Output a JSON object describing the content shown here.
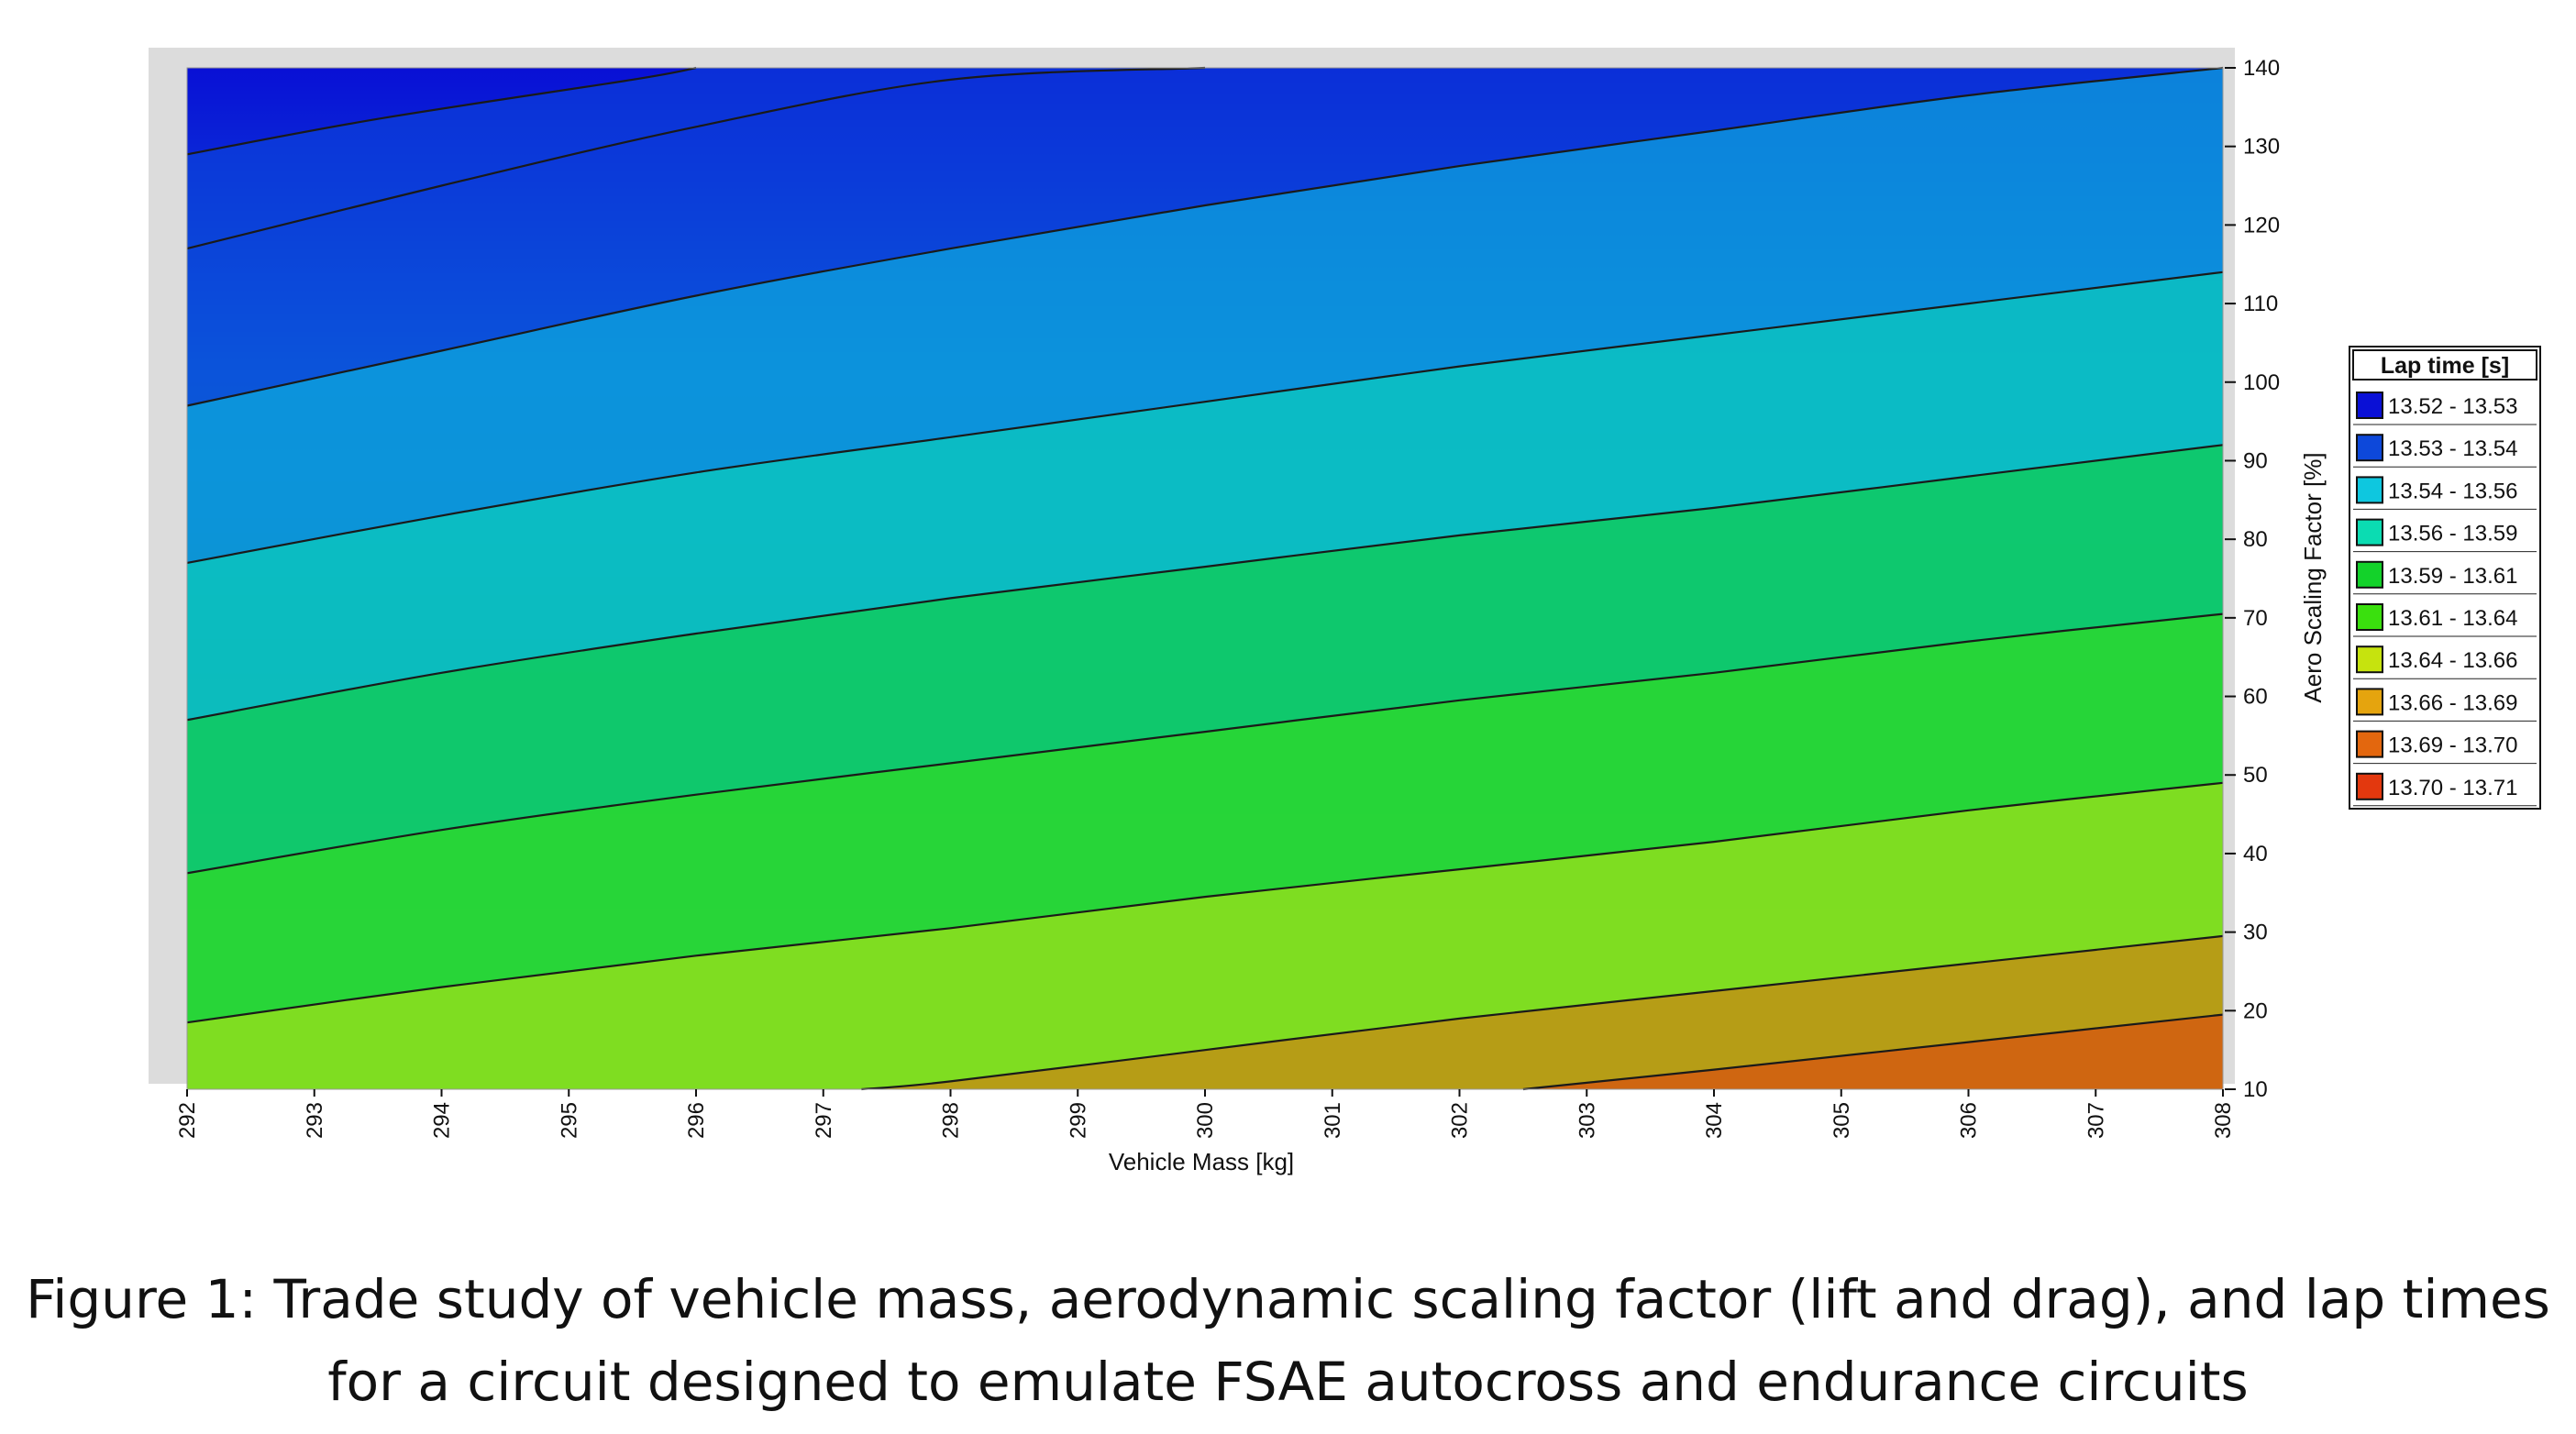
{
  "chart_data": {
    "type": "contour",
    "xlabel": "Vehicle Mass [kg]",
    "ylabel": "Aero Scaling Factor [%]",
    "xlim": [
      292,
      308
    ],
    "ylim": [
      10,
      140
    ],
    "x_ticks": [
      "292",
      "293",
      "294",
      "295",
      "296",
      "297",
      "298",
      "299",
      "300",
      "301",
      "302",
      "303",
      "304",
      "305",
      "306",
      "307",
      "308"
    ],
    "y_ticks": [
      "10",
      "20",
      "30",
      "40",
      "50",
      "60",
      "70",
      "80",
      "90",
      "100",
      "110",
      "120",
      "130",
      "140"
    ],
    "legend_title": "Lap time [s]",
    "legend_position": "right",
    "levels": [
      {
        "label": "13.52 - 13.53",
        "color": "#0a10d6"
      },
      {
        "label": "13.53 - 13.54",
        "color": "#0d48da"
      },
      {
        "label": "13.54 - 13.56",
        "color": "#0ec7df"
      },
      {
        "label": "13.56 - 13.59",
        "color": "#0bdcb2"
      },
      {
        "label": "13.59 - 13.61",
        "color": "#13d22a"
      },
      {
        "label": "13.61 - 13.64",
        "color": "#3ae00e"
      },
      {
        "label": "13.64 - 13.66",
        "color": "#c6e30e"
      },
      {
        "label": "13.66 - 13.69",
        "color": "#e5a40e"
      },
      {
        "label": "13.69 - 13.70",
        "color": "#e3670e"
      },
      {
        "label": "13.70 - 13.71",
        "color": "#e3380e"
      }
    ],
    "contour_lines": [
      {
        "level": "13.53",
        "points": [
          [
            292,
            129
          ],
          [
            293.5,
            133.5
          ],
          [
            295.5,
            138.5
          ],
          [
            296,
            140
          ]
        ]
      },
      {
        "level": "13.53b",
        "points": [
          [
            292,
            117
          ],
          [
            294,
            125
          ],
          [
            296,
            132.5
          ],
          [
            298,
            138.5
          ],
          [
            300,
            140
          ]
        ]
      },
      {
        "level": "13.54",
        "points": [
          [
            292,
            97
          ],
          [
            294,
            104
          ],
          [
            296,
            111
          ],
          [
            298,
            117
          ],
          [
            300,
            122.5
          ],
          [
            302,
            127.5
          ],
          [
            304,
            132
          ],
          [
            306,
            136.5
          ],
          [
            308,
            140
          ]
        ]
      },
      {
        "level": "13.56",
        "points": [
          [
            292,
            77
          ],
          [
            294,
            83
          ],
          [
            296,
            88.5
          ],
          [
            298,
            93
          ],
          [
            300,
            97.5
          ],
          [
            302,
            102
          ],
          [
            304,
            106
          ],
          [
            306,
            110
          ],
          [
            308,
            114
          ]
        ]
      },
      {
        "level": "13.59",
        "points": [
          [
            292,
            57
          ],
          [
            294,
            63
          ],
          [
            296,
            68
          ],
          [
            298,
            72.5
          ],
          [
            300,
            76.5
          ],
          [
            302,
            80.5
          ],
          [
            304,
            84
          ],
          [
            306,
            88
          ],
          [
            308,
            92
          ]
        ]
      },
      {
        "level": "13.61",
        "points": [
          [
            292,
            37.5
          ],
          [
            294,
            43
          ],
          [
            296,
            47.5
          ],
          [
            298,
            51.5
          ],
          [
            300,
            55.5
          ],
          [
            302,
            59.5
          ],
          [
            304,
            63
          ],
          [
            306,
            67
          ],
          [
            308,
            70.5
          ]
        ]
      },
      {
        "level": "13.64",
        "points": [
          [
            292,
            18.5
          ],
          [
            294,
            23
          ],
          [
            296,
            27
          ],
          [
            298,
            30.5
          ],
          [
            300,
            34.5
          ],
          [
            302,
            38
          ],
          [
            304,
            41.5
          ],
          [
            306,
            45.5
          ],
          [
            308,
            49
          ]
        ]
      },
      {
        "level": "13.66",
        "points": [
          [
            297.3,
            10
          ],
          [
            298,
            11
          ],
          [
            300,
            15
          ],
          [
            302,
            19
          ],
          [
            304,
            22.5
          ],
          [
            306,
            26
          ],
          [
            308,
            29.5
          ]
        ]
      },
      {
        "level": "13.69",
        "points": [
          [
            302.5,
            10
          ],
          [
            304,
            12.5
          ],
          [
            306,
            16
          ],
          [
            308,
            19.5
          ]
        ]
      }
    ]
  },
  "caption": {
    "line1": "Figure 1: Trade study of vehicle mass, aerodynamic scaling factor (lift and drag), and lap times",
    "line2": "for a circuit designed to emulate FSAE autocross and endurance circuits"
  }
}
